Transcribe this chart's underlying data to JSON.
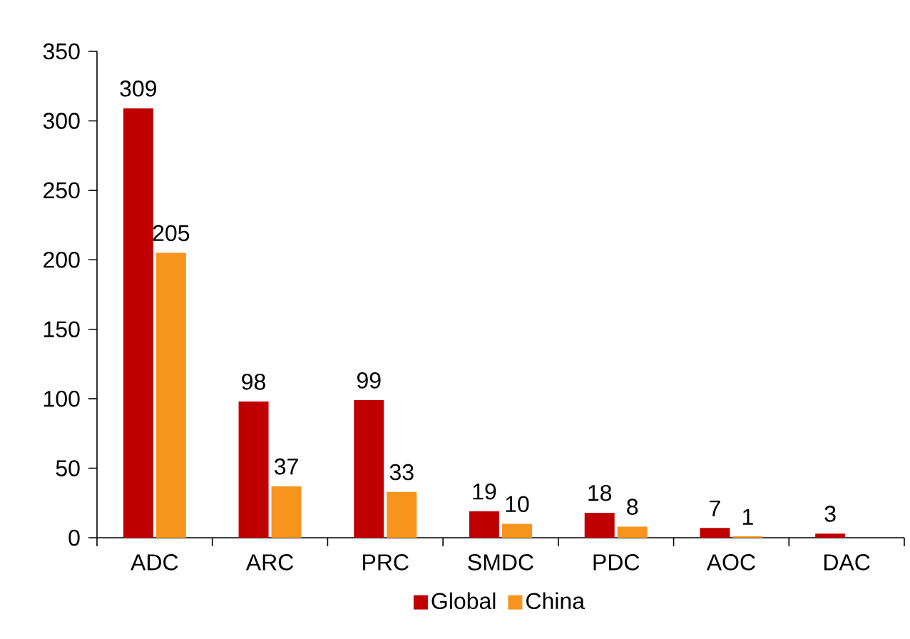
{
  "chart_data": {
    "type": "bar",
    "categories": [
      "ADC",
      "ARC",
      "PRC",
      "SMDC",
      "PDC",
      "AOC",
      "DAC"
    ],
    "series": [
      {
        "name": "Global",
        "color": "#c00000",
        "values": [
          309,
          98,
          99,
          19,
          18,
          7,
          3
        ]
      },
      {
        "name": "China",
        "color": "#f7941d",
        "values": [
          205,
          37,
          33,
          10,
          8,
          1,
          null
        ]
      }
    ],
    "ylim": [
      0,
      350
    ],
    "yticks": [
      0,
      50,
      100,
      150,
      200,
      250,
      300,
      350
    ],
    "data_labels": true,
    "legend": "bottom",
    "grid": false
  }
}
